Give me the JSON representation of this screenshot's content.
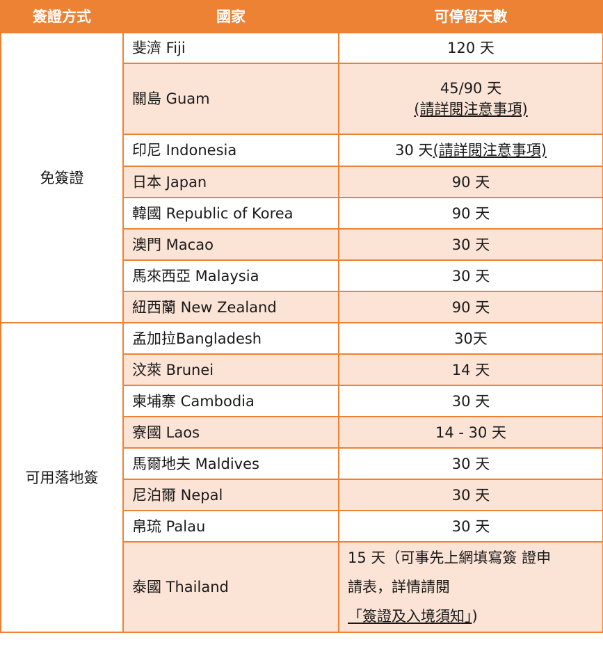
{
  "headers": [
    "簽證方式",
    "國家",
    "可停留天數"
  ],
  "groups": [
    {
      "method": "免簽證"
    },
    {
      "method": "可用落地簽"
    }
  ],
  "rows": [
    {
      "country": "斐濟  Fiji",
      "days": "120  天"
    },
    {
      "country": "關島  Guam",
      "days_line1": "45/90  天",
      "days_line2": "(請詳閱注意事項)"
    },
    {
      "country": "印尼 Indonesia",
      "days_prefix": "30  天",
      "days_link": "(請詳閱注意事項)"
    },
    {
      "country": "日本  Japan",
      "days": "90  天"
    },
    {
      "country": "韓國  Republic of Korea",
      "days": "90  天"
    },
    {
      "country": "澳門  Macao",
      "days": "30  天"
    },
    {
      "country": "馬來西亞  Malaysia",
      "days": "30  天"
    },
    {
      "country": "紐西蘭  New Zealand",
      "days": "90  天"
    },
    {
      "country": "孟加拉Bangladesh",
      "days": "30天"
    },
    {
      "country": "汶萊  Brunei",
      "days": "14  天"
    },
    {
      "country": "柬埔寨  Cambodia",
      "days": "30  天"
    },
    {
      "country": "寮國  Laos",
      "days": "14 - 30 天"
    },
    {
      "country": "馬爾地夫  Maldives",
      "days": "30  天"
    },
    {
      "country": "尼泊爾  Nepal",
      "days": "30  天"
    },
    {
      "country": "帛琉  Palau",
      "days": "30  天"
    },
    {
      "country": "泰國  Thailand",
      "days_line1": "15 天（可事先上網填寫簽  證申",
      "days_line2": "請表，詳情請閱",
      "days_link": "「簽證及入境須知」",
      "days_suffix": ")"
    }
  ],
  "colors": {
    "header": "#ee8234",
    "stripe": "#fbe3d6",
    "border": "#ee8234"
  }
}
